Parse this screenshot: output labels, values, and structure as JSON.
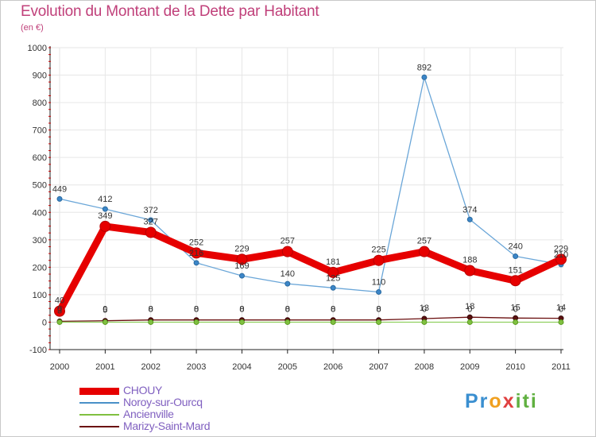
{
  "chart_data": {
    "type": "line",
    "title": "Evolution du Montant de la Dette par Habitant",
    "subtitle": "(en €)",
    "xlabel": "",
    "ylabel": "",
    "x": [
      "2000",
      "2001",
      "2002",
      "2003",
      "2004",
      "2005",
      "2006",
      "2007",
      "2008",
      "2009",
      "2010",
      "2011"
    ],
    "ylim": [
      -100,
      1000
    ],
    "yticks": [
      "-100",
      "0",
      "100",
      "200",
      "300",
      "400",
      "500",
      "600",
      "700",
      "800",
      "900",
      "1000"
    ],
    "grid": true,
    "legend_position": "bottom-left",
    "series": [
      {
        "name": "CHOUY",
        "color": "#e60000",
        "values": [
          40,
          349,
          327,
          252,
          229,
          257,
          181,
          225,
          257,
          188,
          151,
          229
        ],
        "labels": [
          "40",
          "349",
          "327",
          "252",
          "229",
          "257",
          "181",
          "225",
          "257",
          "188",
          "151",
          "229"
        ]
      },
      {
        "name": "Noroy-sur-Ourcq",
        "color": "#4a90c8",
        "values": [
          449,
          412,
          372,
          216,
          169,
          140,
          125,
          110,
          892,
          374,
          240,
          210
        ],
        "labels": [
          "449",
          "412",
          "372",
          "216",
          "169",
          "140",
          "125",
          "110",
          "892",
          "374",
          "240",
          "210"
        ]
      },
      {
        "name": "Ancienville",
        "color": "#80c040",
        "values": [
          0,
          0,
          0,
          0,
          0,
          0,
          0,
          0,
          0,
          0,
          0,
          0
        ],
        "labels": [
          "0",
          "0",
          "0",
          "0",
          "0",
          "0",
          "0",
          "0",
          "0",
          "0",
          "0",
          "0"
        ]
      },
      {
        "name": "Marizy-Saint-Mard",
        "color": "#6b1010",
        "values": [
          3,
          5,
          8,
          8,
          8,
          8,
          8,
          8,
          13,
          18,
          15,
          14
        ],
        "labels": [
          "3",
          "5",
          "8",
          "8",
          "8",
          "8",
          "8",
          "8",
          "13",
          "18",
          "15",
          "14"
        ]
      }
    ]
  },
  "logo": {
    "p1": "Pr",
    "p2": "o",
    "p3": "x",
    "p4": "iti"
  }
}
